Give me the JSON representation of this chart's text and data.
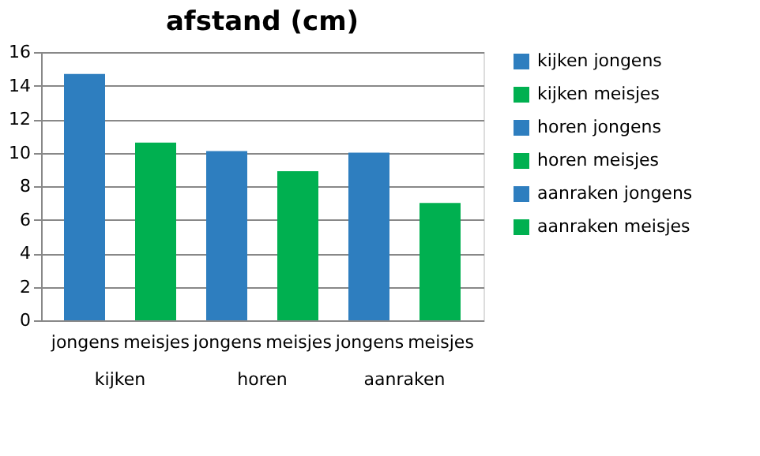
{
  "chart_data": {
    "type": "bar",
    "title": "afstand (cm)",
    "categories": [
      "jongens",
      "meisjes",
      "jongens",
      "meisjes",
      "jongens",
      "meisjes"
    ],
    "annotations": [
      "kijken",
      "horen",
      "aanraken"
    ],
    "series": [
      {
        "name": "kijken jongens",
        "color": "#2e7ebf",
        "values": [
          14.7,
          null,
          null,
          null,
          null,
          null
        ]
      },
      {
        "name": "kijken meisjes",
        "color": "#00b050",
        "values": [
          null,
          10.6,
          null,
          null,
          null,
          null
        ]
      },
      {
        "name": "horen jongens",
        "color": "#2e7ebf",
        "values": [
          null,
          null,
          10.1,
          null,
          null,
          null
        ]
      },
      {
        "name": "horen meisjes",
        "color": "#00b050",
        "values": [
          null,
          null,
          null,
          8.9,
          null,
          null
        ]
      },
      {
        "name": "aanraken jongens",
        "color": "#2e7ebf",
        "values": [
          null,
          null,
          null,
          null,
          10.0,
          null
        ]
      },
      {
        "name": "aanraken meisjes",
        "color": "#00b050",
        "values": [
          null,
          null,
          null,
          null,
          null,
          7.0
        ]
      }
    ],
    "ylim": [
      0,
      16
    ],
    "yticks": [
      0,
      2,
      4,
      6,
      8,
      10,
      12,
      14,
      16
    ],
    "grid": "y",
    "legend": "right"
  }
}
